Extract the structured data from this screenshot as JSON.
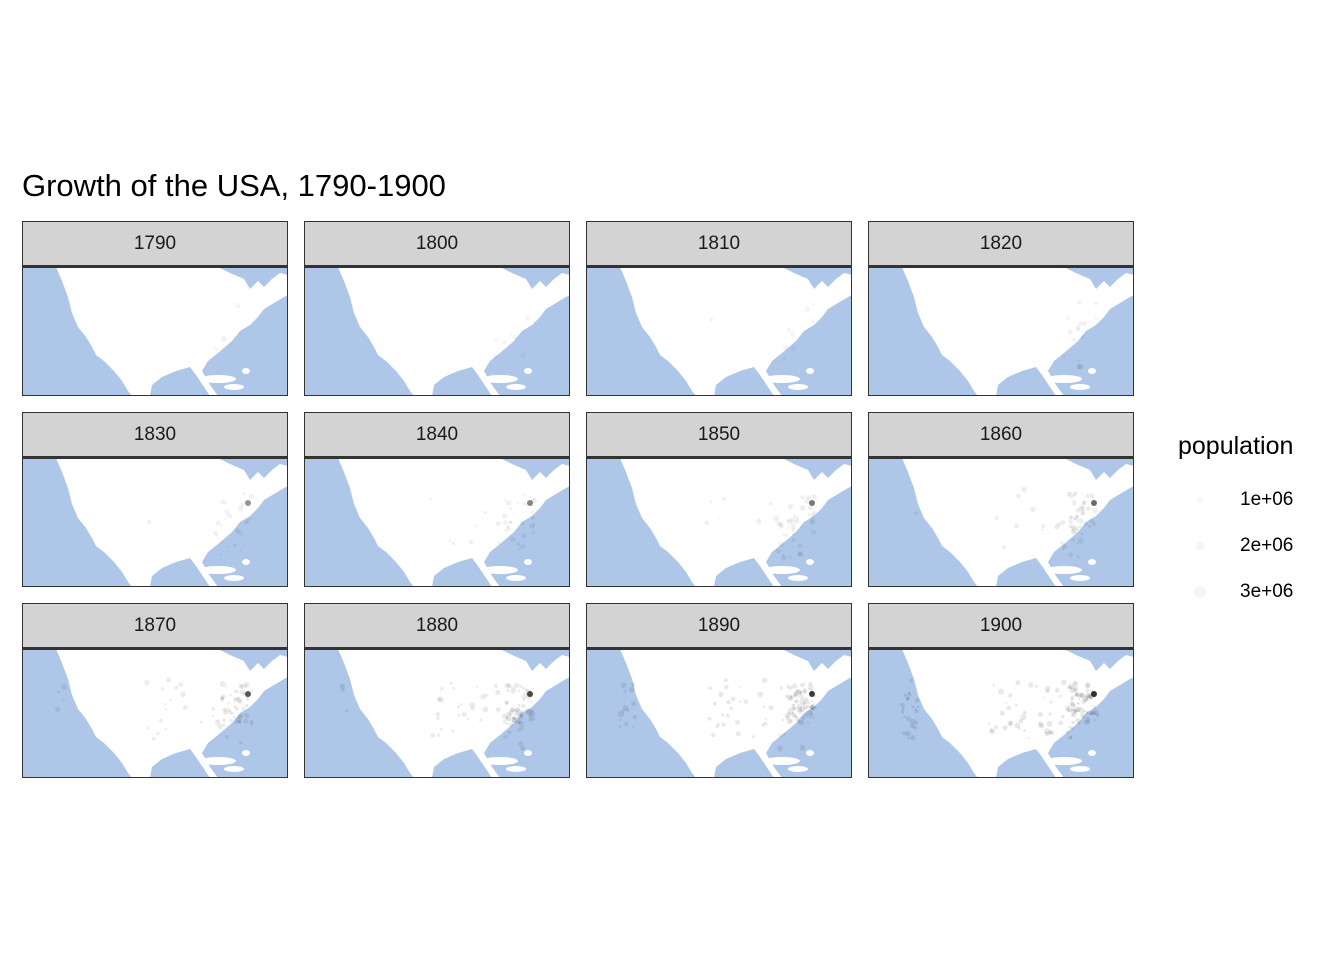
{
  "title": "Growth of the USA, 1790-1900",
  "facets": [
    "1790",
    "1800",
    "1810",
    "1820",
    "1830",
    "1840",
    "1850",
    "1860",
    "1870",
    "1880",
    "1890",
    "1900"
  ],
  "legend": {
    "title": "population",
    "items": [
      {
        "label": "1e+06",
        "value": 1000000
      },
      {
        "label": "2e+06",
        "value": 2000000
      },
      {
        "label": "3e+06",
        "value": 3000000
      }
    ]
  },
  "colors": {
    "ocean": "#aec7e8",
    "land": "#ffffff",
    "point": "#000000",
    "strip": "#d3d3d3",
    "border": "#333333"
  }
}
